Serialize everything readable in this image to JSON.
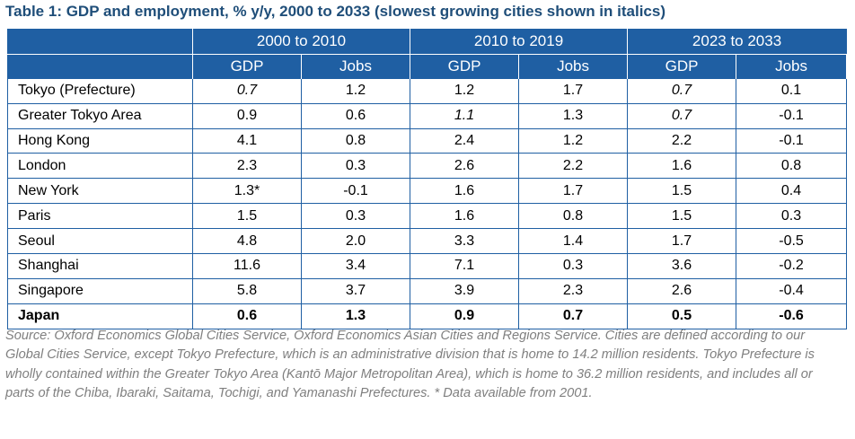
{
  "title": "Table 1: GDP and employment, % y/y, 2000 to 2033 (slowest growing cities shown in italics)",
  "header": {
    "periods": [
      "2000 to 2010",
      "2010 to 2019",
      "2023 to 2033"
    ],
    "sub": [
      "GDP",
      "Jobs",
      "GDP",
      "Jobs",
      "GDP",
      "Jobs"
    ]
  },
  "rows": [
    {
      "city": "Tokyo (Prefecture)",
      "v": [
        "0.7",
        "1.2",
        "1.2",
        "1.7",
        "0.7",
        "0.1"
      ],
      "italic": [
        true,
        false,
        false,
        false,
        true,
        false
      ]
    },
    {
      "city": "Greater Tokyo Area",
      "v": [
        "0.9",
        "0.6",
        "1.1",
        "1.3",
        "0.7",
        "-0.1"
      ],
      "italic": [
        false,
        false,
        true,
        false,
        true,
        false
      ]
    },
    {
      "city": "Hong Kong",
      "v": [
        "4.1",
        "0.8",
        "2.4",
        "1.2",
        "2.2",
        "-0.1"
      ],
      "italic": [
        false,
        false,
        false,
        false,
        false,
        false
      ]
    },
    {
      "city": "London",
      "v": [
        "2.3",
        "0.3",
        "2.6",
        "2.2",
        "1.6",
        "0.8"
      ],
      "italic": [
        false,
        false,
        false,
        false,
        false,
        false
      ]
    },
    {
      "city": "New York",
      "v": [
        "1.3*",
        "-0.1",
        "1.6",
        "1.7",
        "1.5",
        "0.4"
      ],
      "italic": [
        false,
        false,
        false,
        false,
        false,
        false
      ]
    },
    {
      "city": "Paris",
      "v": [
        "1.5",
        "0.3",
        "1.6",
        "0.8",
        "1.5",
        "0.3"
      ],
      "italic": [
        false,
        false,
        false,
        false,
        false,
        false
      ]
    },
    {
      "city": "Seoul",
      "v": [
        "4.8",
        "2.0",
        "3.3",
        "1.4",
        "1.7",
        "-0.5"
      ],
      "italic": [
        false,
        false,
        false,
        false,
        false,
        false
      ]
    },
    {
      "city": "Shanghai",
      "v": [
        "11.6",
        "3.4",
        "7.1",
        "0.3",
        "3.6",
        "-0.2"
      ],
      "italic": [
        false,
        false,
        false,
        false,
        false,
        false
      ]
    },
    {
      "city": "Singapore",
      "v": [
        "5.8",
        "3.7",
        "3.9",
        "2.3",
        "2.6",
        "-0.4"
      ],
      "italic": [
        false,
        false,
        false,
        false,
        false,
        false
      ]
    }
  ],
  "total": {
    "city": "Japan",
    "v": [
      "0.6",
      "1.3",
      "0.9",
      "0.7",
      "0.5",
      "-0.6"
    ]
  },
  "source": "Source: Oxford Economics Global Cities Service, Oxford Economics Asian Cities and Regions Service. Cities are defined according to our Global Cities Service, except Tokyo Prefecture, which is an administrative division that is home to 14.2 million residents. Tokyo Prefecture is wholly contained within the Greater Tokyo Area (Kantō Major Metropolitan Area), which is home to 36.2 million residents, and includes all or parts of the Chiba, Ibaraki, Saitama, Tochigi, and Yamanashi Prefectures. * Data available from 2001.",
  "colors": {
    "header_bg": "#1f5fa3",
    "title": "#1f4e79",
    "source_text": "#7f7f7f"
  }
}
